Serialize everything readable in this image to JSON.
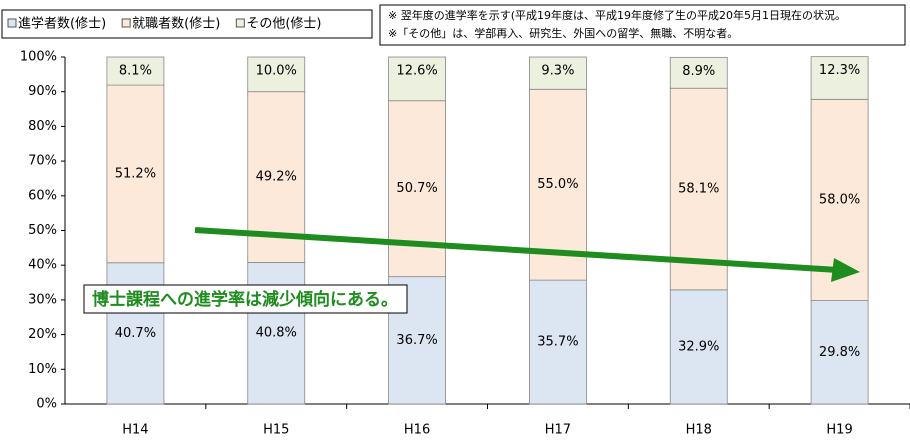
{
  "chart_data": {
    "type": "stacked_bar",
    "categories": [
      "H14",
      "H15",
      "H16",
      "H17",
      "H18",
      "H19"
    ],
    "series": [
      {
        "name": "進学者数(修士)",
        "color": "#dce6f2",
        "values": [
          40.7,
          40.8,
          36.7,
          35.7,
          32.9,
          29.8
        ],
        "value_labels": [
          "40.7%",
          "40.8%",
          "36.7%",
          "35.7%",
          "32.9%",
          "29.8%"
        ]
      },
      {
        "name": "就職者数(修士)",
        "color": "#fde9d9",
        "values": [
          51.2,
          49.2,
          50.7,
          55.0,
          58.1,
          58.0
        ],
        "value_labels": [
          "51.2%",
          "49.2%",
          "50.7%",
          "55.0%",
          "58.1%",
          "58.0%"
        ]
      },
      {
        "name": "その他(修士)",
        "color": "#ebf1de",
        "values": [
          8.1,
          10.0,
          12.6,
          9.3,
          8.9,
          12.3
        ],
        "value_labels": [
          "8.1%",
          "10.0%",
          "12.6%",
          "9.3%",
          "8.9%",
          "12.3%"
        ]
      }
    ],
    "ylim": [
      0,
      100
    ],
    "yticks": [
      {
        "value": 0,
        "label": "0%"
      },
      {
        "value": 10,
        "label": "10%"
      },
      {
        "value": 20,
        "label": "20%"
      },
      {
        "value": 30,
        "label": "30%"
      },
      {
        "value": 40,
        "label": "40%"
      },
      {
        "value": 50,
        "label": "50%"
      },
      {
        "value": 60,
        "label": "60%"
      },
      {
        "value": 70,
        "label": "70%"
      },
      {
        "value": 80,
        "label": "80%"
      },
      {
        "value": 90,
        "label": "90%"
      },
      {
        "value": 100,
        "label": "100%"
      }
    ],
    "notes": [
      "※ 翌年度の進学率を示す(平成19年度は、平成19年度修了生の平成20年5月1日現在の状況。",
      "※「その他」は、学部再入、研究生、外国への留学、無職、不明な者。"
    ],
    "annotation": "博士課程への進学率は減少傾向にある。"
  }
}
